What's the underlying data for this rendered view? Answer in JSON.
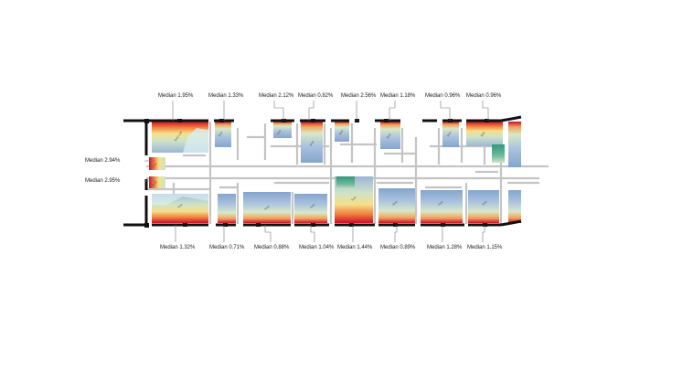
{
  "labels": {
    "top": [
      {
        "id": "t1",
        "text": "Median 1.95%"
      },
      {
        "id": "t2",
        "text": "Median 1.33%"
      },
      {
        "id": "t3",
        "text": "Median 2.12%"
      },
      {
        "id": "t4",
        "text": "Median 0.82%"
      },
      {
        "id": "t5",
        "text": "Median 2.56%"
      },
      {
        "id": "t6",
        "text": "Median 1.18%"
      },
      {
        "id": "t7",
        "text": "Median 0.96%"
      },
      {
        "id": "t8",
        "text": "Median 0.96%"
      }
    ],
    "left": [
      {
        "id": "l1",
        "text": "Median 2.94%"
      },
      {
        "id": "l2",
        "text": "Median 2.95%"
      }
    ],
    "bottom": [
      {
        "id": "b1",
        "text": "Median 1.32%"
      },
      {
        "id": "b2",
        "text": "Median 0.71%"
      },
      {
        "id": "b3",
        "text": "Median 0.88%"
      },
      {
        "id": "b4",
        "text": "Median 1.04%"
      },
      {
        "id": "b5",
        "text": "Median 1.44%"
      },
      {
        "id": "b6",
        "text": "Median 0.89%"
      },
      {
        "id": "b7",
        "text": "Median 1.28%"
      },
      {
        "id": "b8",
        "text": "Median 1.15%"
      }
    ]
  },
  "colors": {
    "high": "#c8102e",
    "mid_high": "#f07a3a",
    "mid": "#f6e08a",
    "low": "#cfe2c8",
    "lowest": "#8aa8d0",
    "special": "#2f9a78",
    "wall": "#111111",
    "partition": "#c4c4c4"
  }
}
